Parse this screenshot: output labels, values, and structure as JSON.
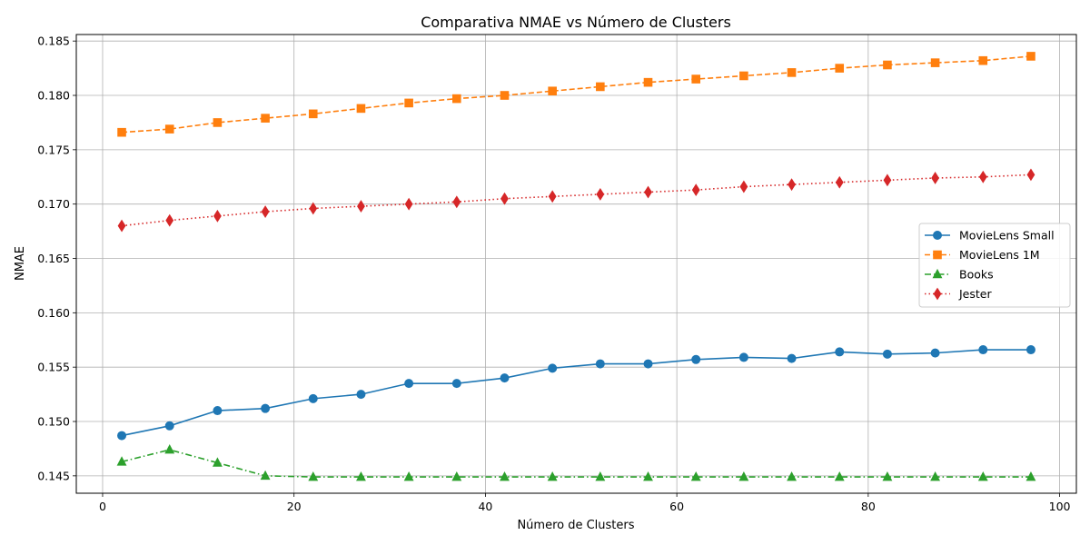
{
  "chart_data": {
    "type": "line",
    "title": "Comparativa NMAE vs Número de Clusters",
    "xlabel": "Número de Clusters",
    "ylabel": "NMAE",
    "xlim": [
      -2.75,
      101.75
    ],
    "ylim": [
      0.1434,
      0.1856
    ],
    "xticks": [
      0,
      20,
      40,
      60,
      80,
      100
    ],
    "xtick_labels": [
      "0",
      "20",
      "40",
      "60",
      "80",
      "100"
    ],
    "yticks": [
      0.145,
      0.15,
      0.155,
      0.16,
      0.165,
      0.17,
      0.175,
      0.18,
      0.185
    ],
    "ytick_labels": [
      "0.145",
      "0.150",
      "0.155",
      "0.160",
      "0.165",
      "0.170",
      "0.175",
      "0.180",
      "0.185"
    ],
    "grid": true,
    "legend_position": "center-right",
    "x": [
      2,
      7,
      12,
      17,
      22,
      27,
      32,
      37,
      42,
      47,
      52,
      57,
      62,
      67,
      72,
      77,
      82,
      87,
      92,
      97
    ],
    "series": [
      {
        "name": "MovieLens Small",
        "color": "#1f77b4",
        "line_style": "solid",
        "marker": "circle",
        "values": [
          0.1487,
          0.1496,
          0.151,
          0.1512,
          0.1521,
          0.1525,
          0.1535,
          0.1535,
          0.154,
          0.1549,
          0.1553,
          0.1553,
          0.1557,
          0.1559,
          0.1558,
          0.1564,
          0.1562,
          0.1563,
          0.1566,
          0.1566
        ]
      },
      {
        "name": "MovieLens 1M",
        "color": "#ff7f0e",
        "line_style": "dashed",
        "marker": "square",
        "values": [
          0.1766,
          0.1769,
          0.1775,
          0.1779,
          0.1783,
          0.1788,
          0.1793,
          0.1797,
          0.18,
          0.1804,
          0.1808,
          0.1812,
          0.1815,
          0.1818,
          0.1821,
          0.1825,
          0.1828,
          0.183,
          0.1832,
          0.1836
        ]
      },
      {
        "name": "Books",
        "color": "#2ca02c",
        "line_style": "dashdot",
        "marker": "triangle",
        "values": [
          0.1463,
          0.1474,
          0.1462,
          0.145,
          0.1449,
          0.1449,
          0.1449,
          0.1449,
          0.1449,
          0.1449,
          0.1449,
          0.1449,
          0.1449,
          0.1449,
          0.1449,
          0.1449,
          0.1449,
          0.1449,
          0.1449,
          0.1449
        ]
      },
      {
        "name": "Jester",
        "color": "#d62728",
        "line_style": "dotted",
        "marker": "diamond",
        "values": [
          0.168,
          0.1685,
          0.1689,
          0.1693,
          0.1696,
          0.1698,
          0.17,
          0.1702,
          0.1705,
          0.1707,
          0.1709,
          0.1711,
          0.1713,
          0.1716,
          0.1718,
          0.172,
          0.1722,
          0.1724,
          0.1725,
          0.1727
        ]
      }
    ]
  }
}
